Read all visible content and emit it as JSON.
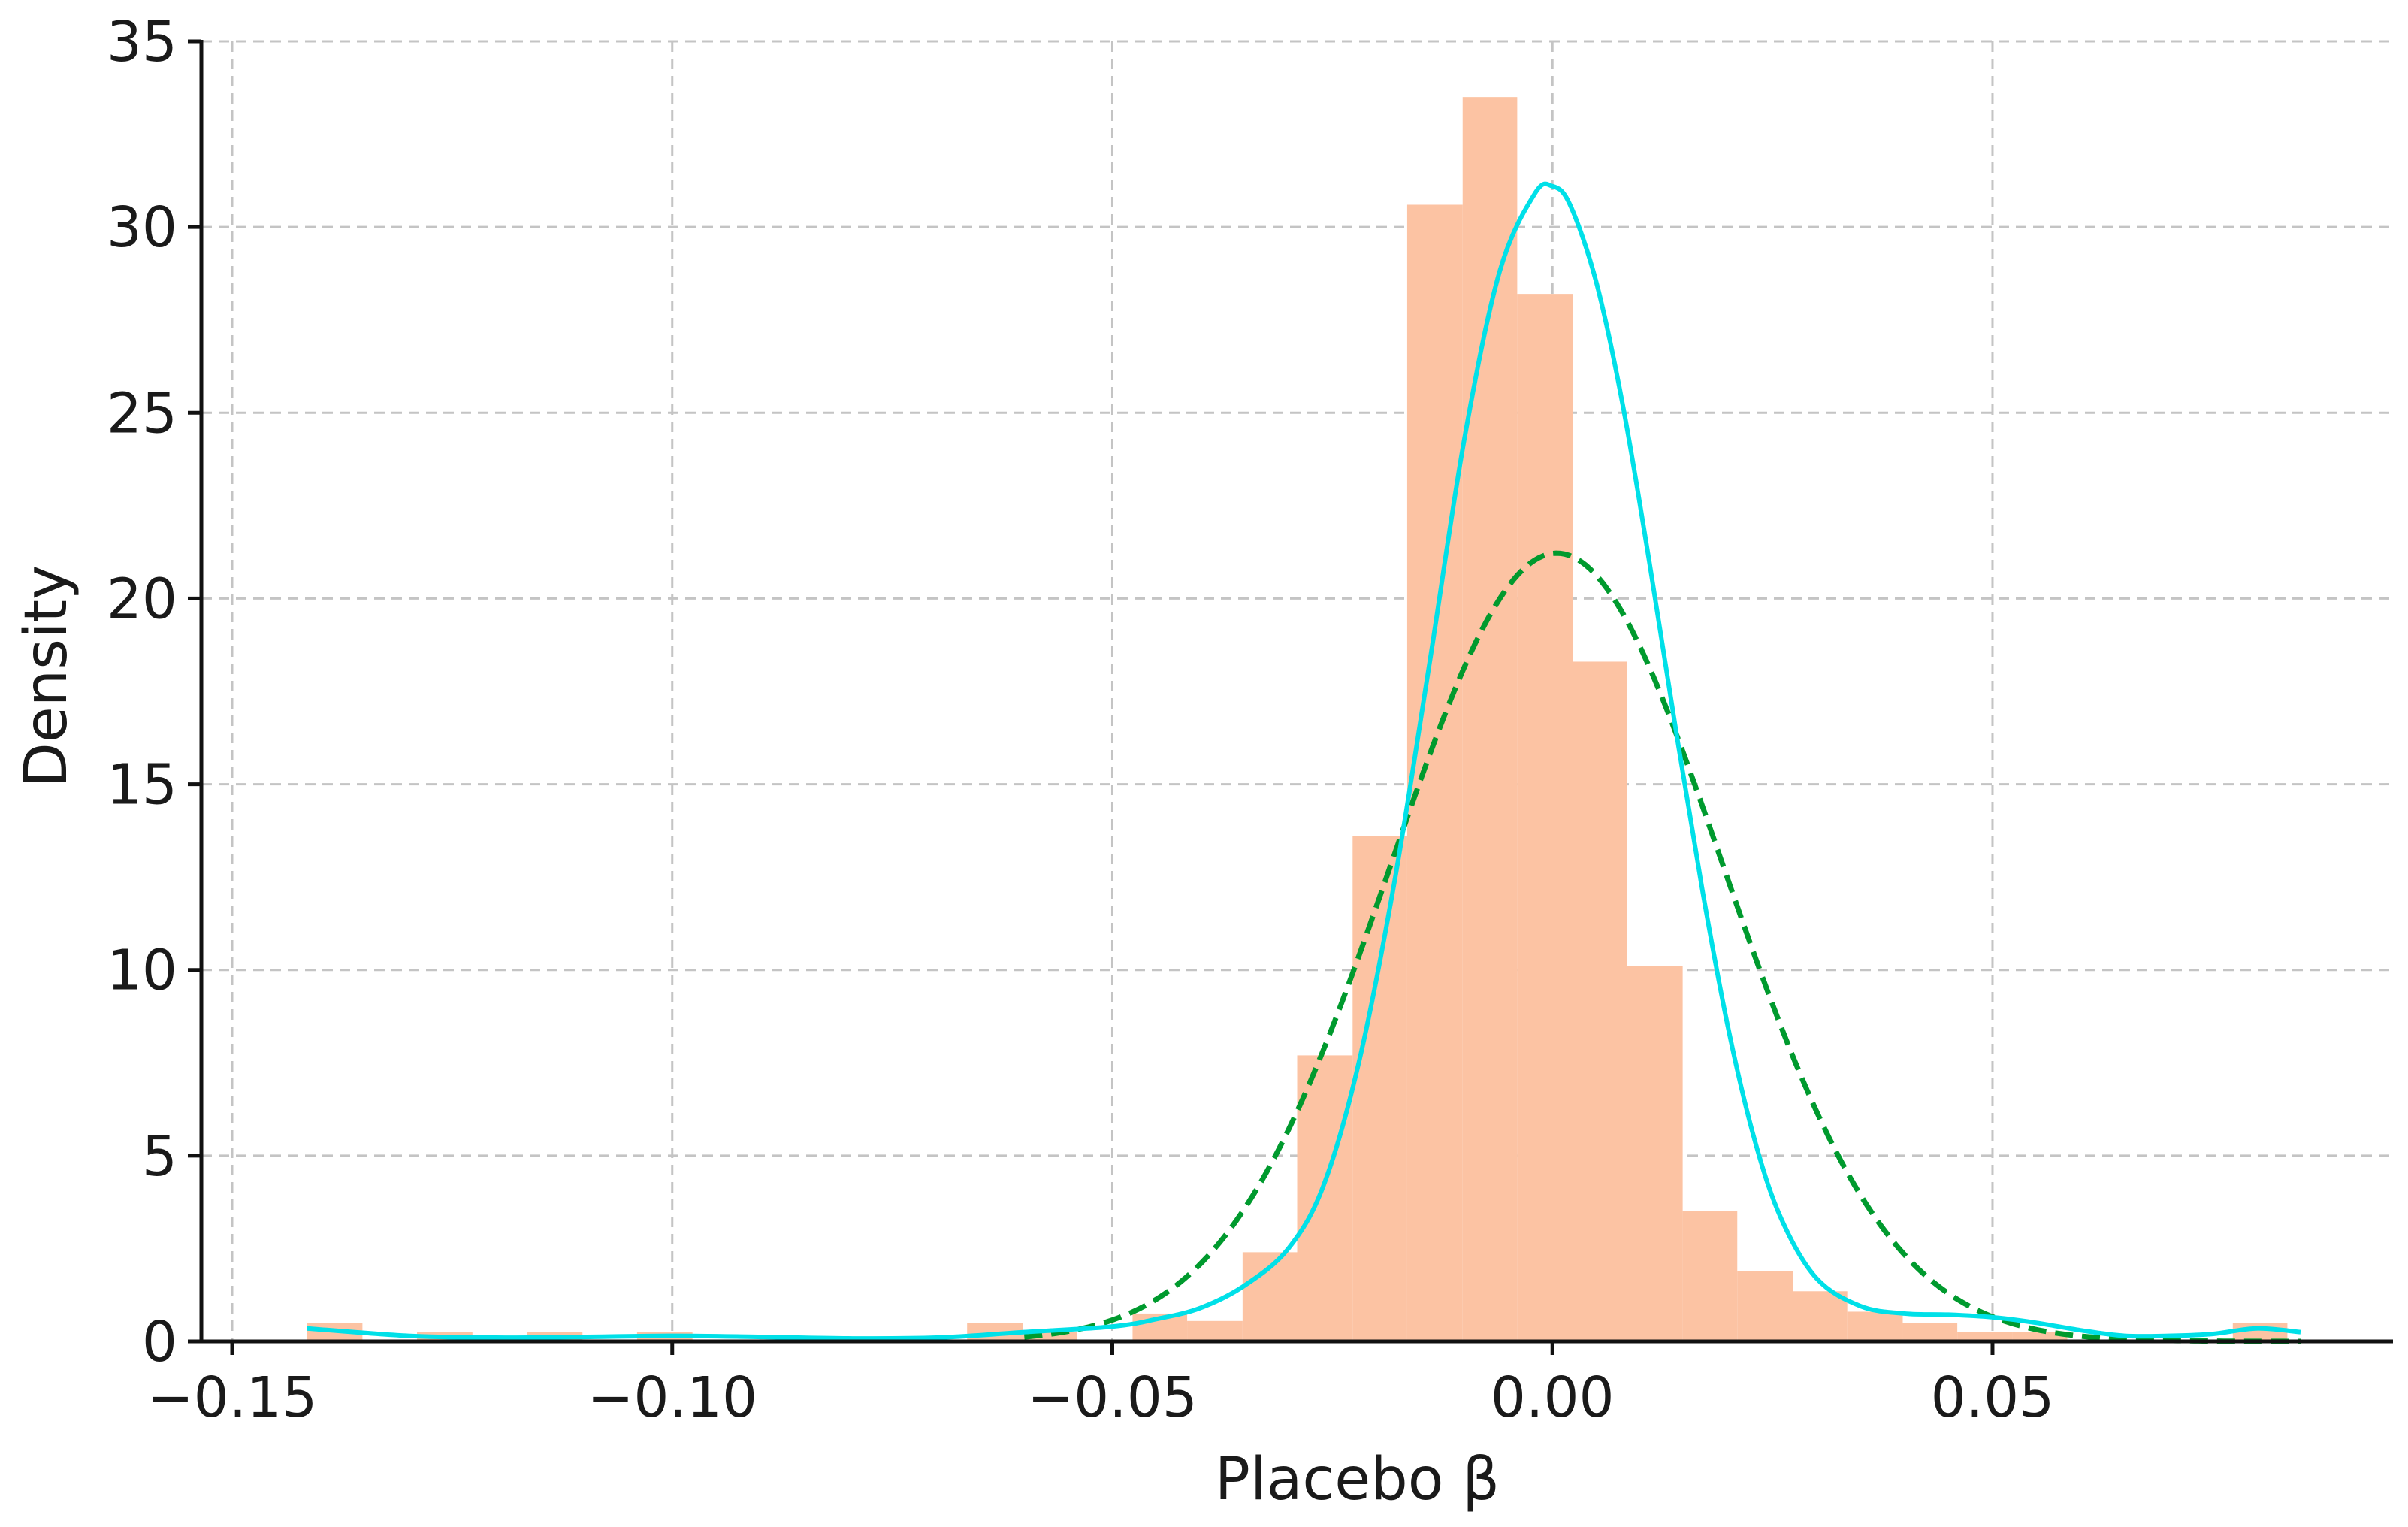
{
  "chart_data": {
    "type": "bar",
    "title": "",
    "xlabel": "Placebo β",
    "ylabel": "Density",
    "xlim": [
      -0.1535,
      0.0955
    ],
    "ylim": [
      0,
      35
    ],
    "grid": true,
    "x_ticks": [
      -0.15,
      -0.1,
      -0.05,
      0.0,
      0.05
    ],
    "x_tick_labels": [
      "−0.15",
      "−0.10",
      "−0.05",
      "0.00",
      "0.05"
    ],
    "y_ticks": [
      0,
      5,
      10,
      15,
      20,
      25,
      30,
      35
    ],
    "y_tick_labels": [
      "0",
      "5",
      "10",
      "15",
      "20",
      "25",
      "30",
      "35"
    ],
    "colors": {
      "histogram": "#fcc3a3",
      "kde": "#00e0e8",
      "normal": "#009a2e"
    },
    "histogram": {
      "bin_edges": [
        -0.1415,
        -0.1352,
        -0.129,
        -0.1227,
        -0.1165,
        -0.1102,
        -0.104,
        -0.0977,
        -0.0915,
        -0.0852,
        -0.079,
        -0.0727,
        -0.0665,
        -0.0602,
        -0.054,
        -0.0477,
        -0.0415,
        -0.0352,
        -0.029,
        -0.0227,
        -0.0165,
        -0.0102,
        -0.004,
        0.0023,
        0.0085,
        0.0148,
        0.021,
        0.0273,
        0.0335,
        0.0398,
        0.046,
        0.0523,
        0.0585,
        0.0648,
        0.071,
        0.0773,
        0.0835
      ],
      "values": [
        0.5,
        0,
        0.25,
        0,
        0.25,
        0,
        0.25,
        0,
        0,
        0,
        0,
        0,
        0.5,
        0.25,
        0,
        0.75,
        0.55,
        2.4,
        7.7,
        13.6,
        30.6,
        33.5,
        28.2,
        18.3,
        10.1,
        3.5,
        1.9,
        1.35,
        0.8,
        0.5,
        0.25,
        0.25,
        0,
        0,
        0,
        0.5
      ]
    },
    "series": [
      {
        "kind": "kde",
        "x": [
          -0.1415,
          -0.13,
          -0.12,
          -0.11,
          -0.1,
          -0.09,
          -0.08,
          -0.07,
          -0.06,
          -0.05,
          -0.045,
          -0.04,
          -0.035,
          -0.03,
          -0.026,
          -0.022,
          -0.018,
          -0.014,
          -0.01,
          -0.006,
          -0.002,
          0.0,
          0.002,
          0.005,
          0.008,
          0.011,
          0.014,
          0.017,
          0.02,
          0.023,
          0.026,
          0.03,
          0.035,
          0.04,
          0.045,
          0.05,
          0.055,
          0.06,
          0.065,
          0.07,
          0.075,
          0.08,
          0.085
        ],
        "y": [
          0.35,
          0.15,
          0.1,
          0.12,
          0.15,
          0.12,
          0.08,
          0.1,
          0.25,
          0.4,
          0.6,
          0.9,
          1.5,
          2.5,
          4.2,
          7.5,
          12.3,
          18.2,
          24.3,
          28.8,
          30.9,
          31.1,
          30.6,
          28.5,
          25.2,
          21.0,
          16.5,
          12.2,
          8.4,
          5.4,
          3.3,
          1.7,
          0.95,
          0.75,
          0.72,
          0.65,
          0.5,
          0.3,
          0.15,
          0.15,
          0.2,
          0.35,
          0.25
        ]
      },
      {
        "kind": "normal",
        "mean": 0.0005,
        "std": 0.0188,
        "x_range": [
          -0.06,
          0.085
        ]
      }
    ]
  }
}
